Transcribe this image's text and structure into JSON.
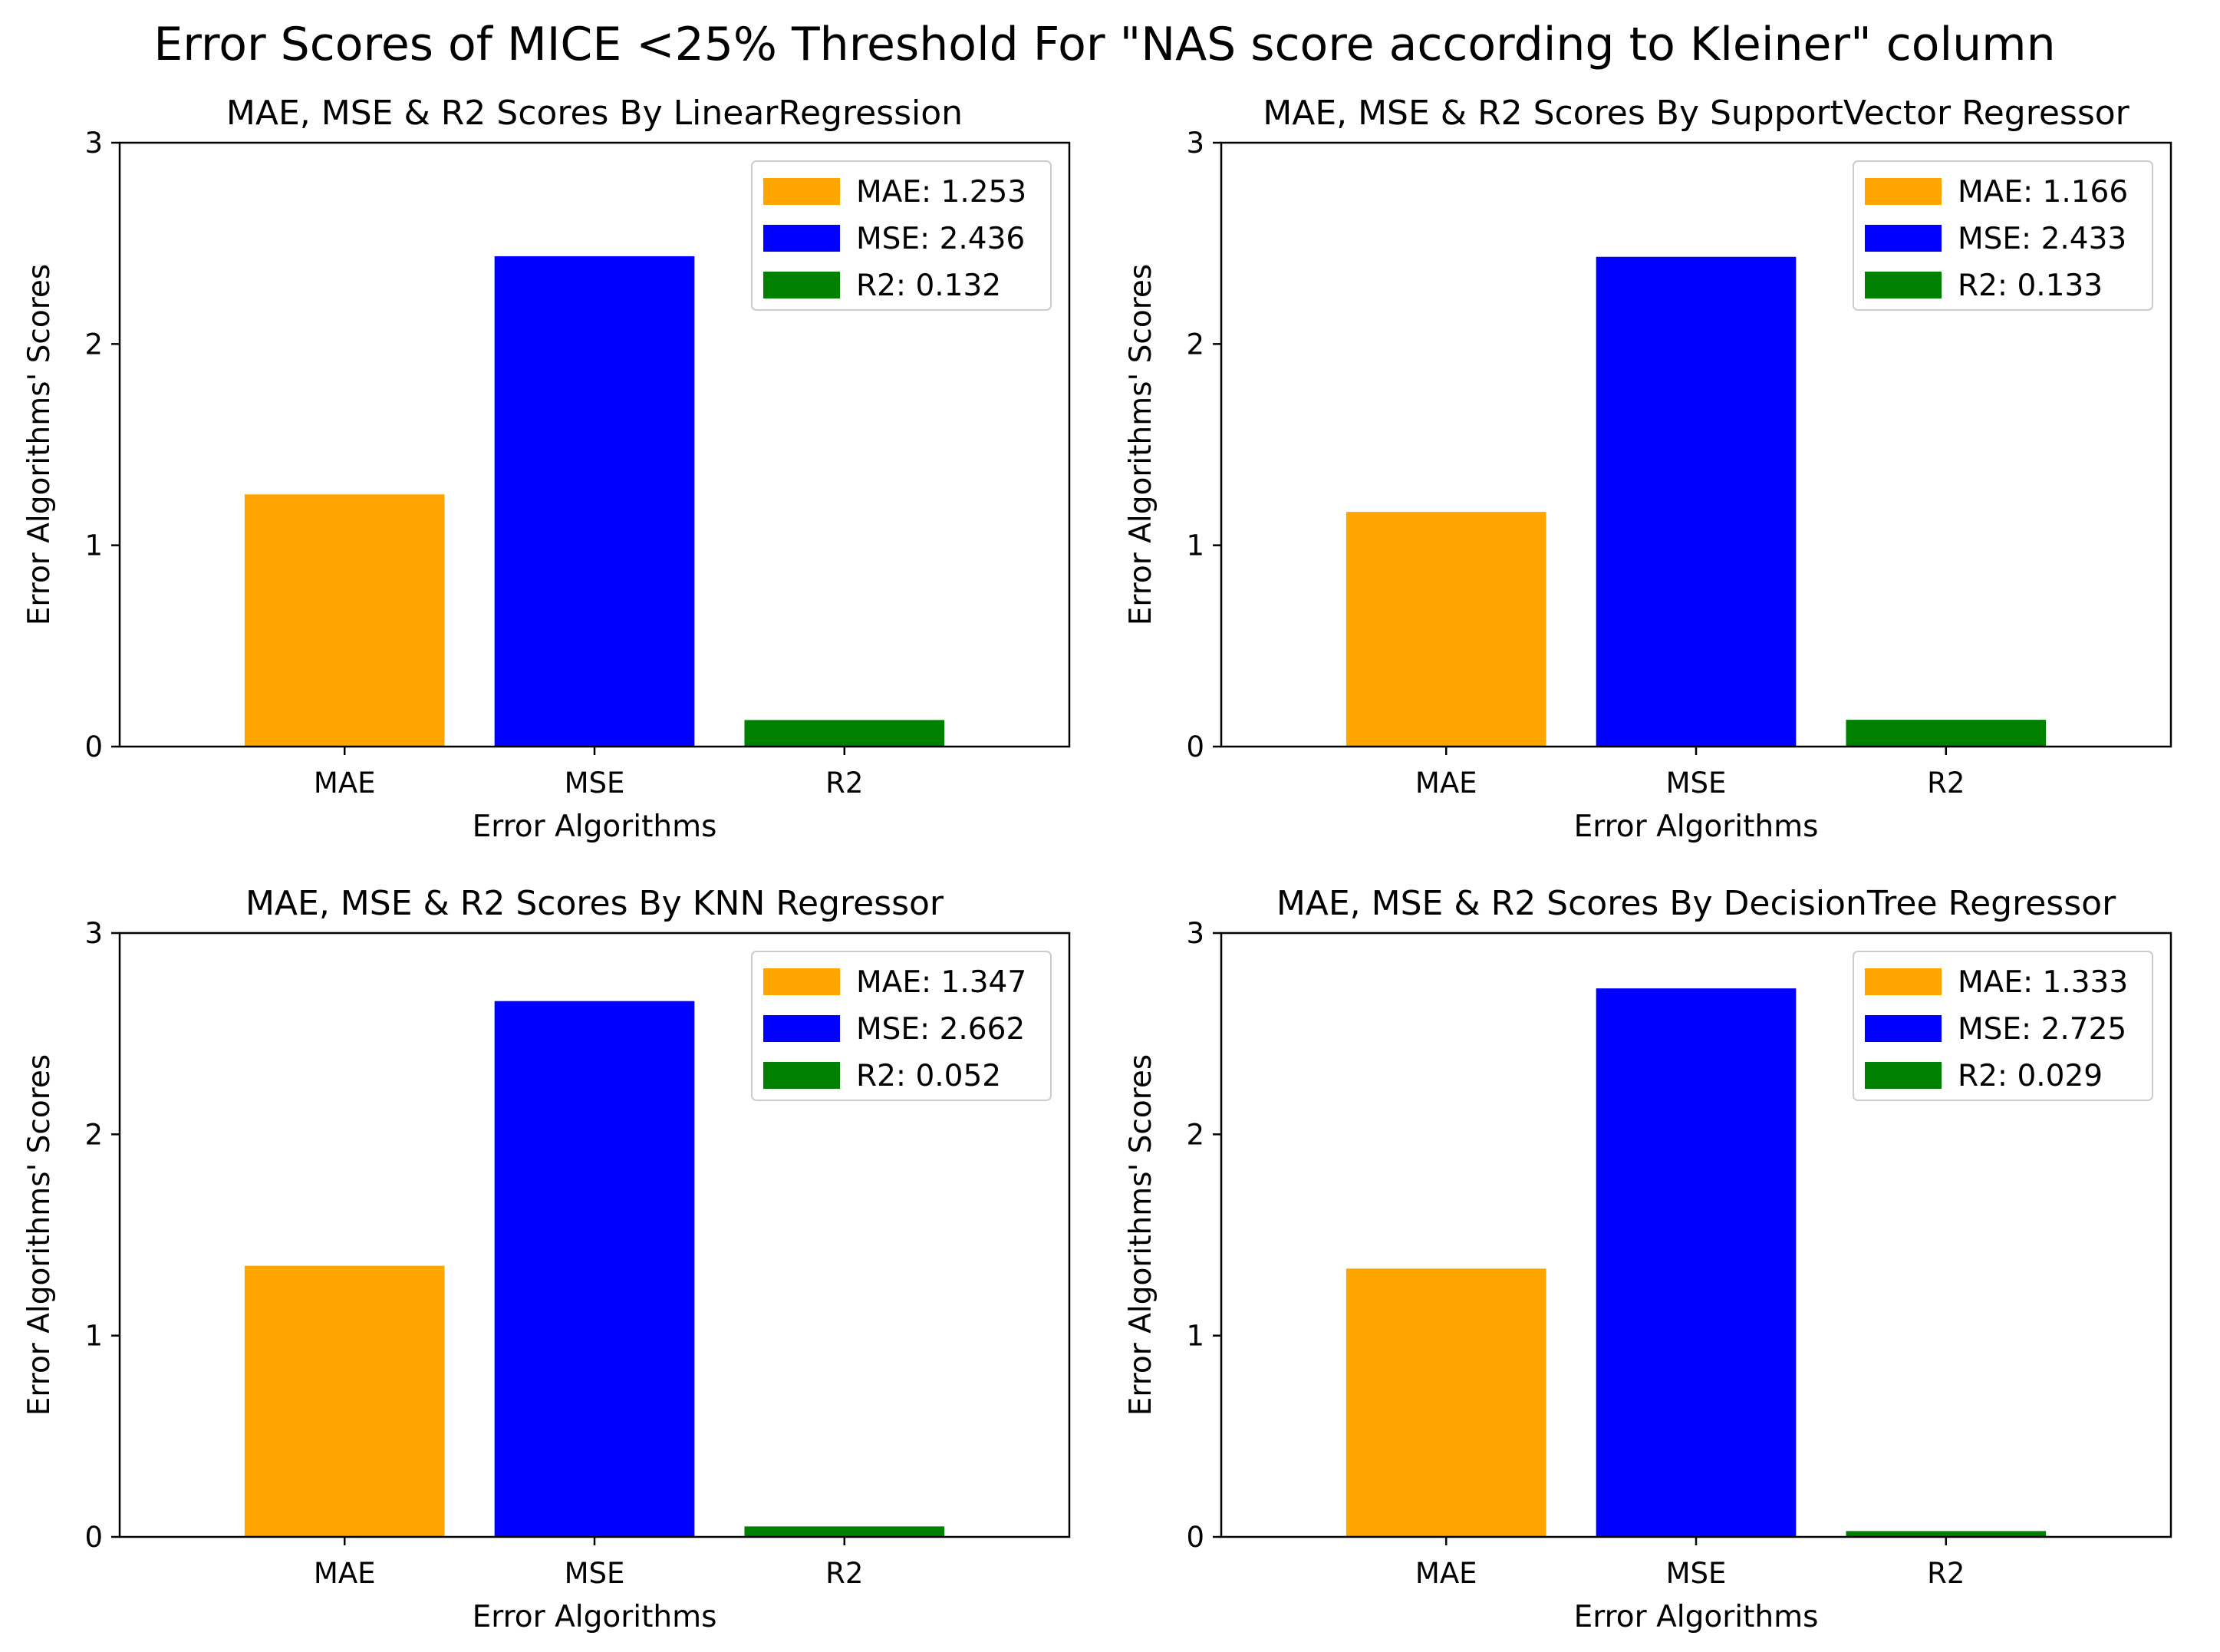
{
  "suptitle": "Error Scores of MICE <25% Threshold For \"NAS score according to Kleiner\" column",
  "chart_data": [
    {
      "type": "bar",
      "title": "MAE, MSE & R2 Scores By LinearRegression",
      "xlabel": "Error Algorithms",
      "ylabel": "Error Algorithms' Scores",
      "categories": [
        "MAE",
        "MSE",
        "R2"
      ],
      "values": [
        1.253,
        2.436,
        0.132
      ],
      "colors": [
        "#ffa500",
        "#0000ff",
        "#008000"
      ],
      "legend": [
        "MAE: 1.253",
        "MSE: 2.436",
        "R2: 0.132"
      ],
      "legend_position": "upper right",
      "ylim": [
        0,
        3
      ],
      "yticks": [
        "0",
        "1",
        "2",
        "3"
      ],
      "grid": false
    },
    {
      "type": "bar",
      "title": "MAE, MSE & R2 Scores By SupportVector Regressor",
      "xlabel": "Error Algorithms",
      "ylabel": "Error Algorithms' Scores",
      "categories": [
        "MAE",
        "MSE",
        "R2"
      ],
      "values": [
        1.166,
        2.433,
        0.133
      ],
      "colors": [
        "#ffa500",
        "#0000ff",
        "#008000"
      ],
      "legend": [
        "MAE: 1.166",
        "MSE: 2.433",
        "R2: 0.133"
      ],
      "legend_position": "upper right",
      "ylim": [
        0,
        3
      ],
      "yticks": [
        "0",
        "1",
        "2",
        "3"
      ],
      "grid": false
    },
    {
      "type": "bar",
      "title": "MAE, MSE & R2 Scores By KNN Regressor",
      "xlabel": "Error Algorithms",
      "ylabel": "Error Algorithms' Scores",
      "categories": [
        "MAE",
        "MSE",
        "R2"
      ],
      "values": [
        1.347,
        2.662,
        0.052
      ],
      "colors": [
        "#ffa500",
        "#0000ff",
        "#008000"
      ],
      "legend": [
        "MAE: 1.347",
        "MSE: 2.662",
        "R2: 0.052"
      ],
      "legend_position": "upper right",
      "ylim": [
        0,
        3
      ],
      "yticks": [
        "0",
        "1",
        "2",
        "3"
      ],
      "grid": false
    },
    {
      "type": "bar",
      "title": "MAE, MSE & R2 Scores By DecisionTree Regressor",
      "xlabel": "Error Algorithms",
      "ylabel": "Error Algorithms' Scores",
      "categories": [
        "MAE",
        "MSE",
        "R2"
      ],
      "values": [
        1.333,
        2.725,
        0.029
      ],
      "colors": [
        "#ffa500",
        "#0000ff",
        "#008000"
      ],
      "legend": [
        "MAE: 1.333",
        "MSE: 2.725",
        "R2: 0.029"
      ],
      "legend_position": "upper right",
      "ylim": [
        0,
        3
      ],
      "yticks": [
        "0",
        "1",
        "2",
        "3"
      ],
      "grid": false
    }
  ]
}
